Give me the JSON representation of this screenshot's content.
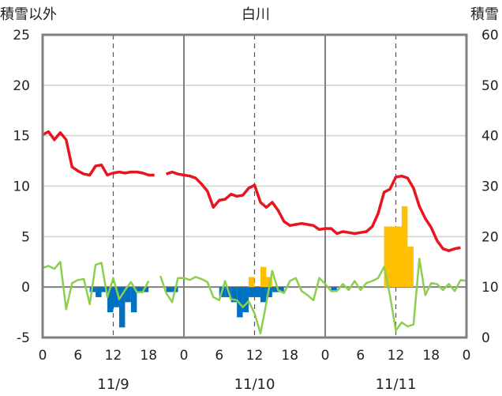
{
  "chart_data": {
    "type": "bar+line",
    "title": "白川",
    "left_axis_label": "積雪以外",
    "right_axis_label": "積雪",
    "y_left": {
      "min": -5,
      "max": 25,
      "ticks": [
        -5,
        0,
        5,
        10,
        15,
        20,
        25
      ]
    },
    "y_right": {
      "min": 0,
      "max": 60,
      "ticks": [
        0,
        10,
        20,
        30,
        40,
        50,
        60
      ]
    },
    "x": {
      "min_hour": 0,
      "max_hour": 72,
      "tick_hours": [
        0,
        6,
        12,
        18,
        24,
        30,
        36,
        42,
        48,
        54,
        60,
        66,
        72
      ],
      "tick_labels": [
        "0",
        "6",
        "12",
        "18",
        "0",
        "6",
        "12",
        "18",
        "0",
        "6",
        "12",
        "18",
        "0"
      ],
      "day_lines": [
        24,
        48
      ],
      "noon_lines": [
        12,
        36,
        60
      ],
      "dates": [
        {
          "label": "11/9",
          "hour": 12
        },
        {
          "label": "11/10",
          "hour": 36
        },
        {
          "label": "11/11",
          "hour": 60
        }
      ]
    },
    "series": [
      {
        "type": "line",
        "color": "#e8141e",
        "axis": "left",
        "points": [
          [
            0,
            15.1
          ],
          [
            1,
            15.4
          ],
          [
            2,
            14.6
          ],
          [
            3,
            15.3
          ],
          [
            4,
            14.6
          ],
          [
            5,
            11.9
          ],
          [
            6,
            11.5
          ],
          [
            7,
            11.2
          ],
          [
            8,
            11.1
          ],
          [
            9,
            12.0
          ],
          [
            10,
            12.1
          ],
          [
            11,
            11.1
          ],
          [
            12,
            11.3
          ],
          [
            13,
            11.4
          ],
          [
            14,
            11.3
          ],
          [
            15,
            11.4
          ],
          [
            16,
            11.4
          ],
          [
            17,
            11.3
          ],
          [
            18,
            11.1
          ],
          [
            19,
            11.1
          ],
          [
            null,
            null
          ],
          [
            21,
            11.2
          ],
          [
            22,
            11.4
          ],
          [
            23,
            11.2
          ],
          [
            24,
            11.1
          ],
          [
            25,
            11.0
          ],
          [
            26,
            10.8
          ],
          [
            27,
            10.2
          ],
          [
            28,
            9.5
          ],
          [
            29,
            7.9
          ],
          [
            30,
            8.6
          ],
          [
            31,
            8.7
          ],
          [
            32,
            9.2
          ],
          [
            33,
            9.0
          ],
          [
            34,
            9.1
          ],
          [
            35,
            9.8
          ],
          [
            36,
            10.1
          ],
          [
            37,
            8.4
          ],
          [
            38,
            7.9
          ],
          [
            39,
            8.4
          ],
          [
            40,
            7.6
          ],
          [
            41,
            6.5
          ],
          [
            42,
            6.1
          ],
          [
            43,
            6.2
          ],
          [
            44,
            6.3
          ],
          [
            45,
            6.2
          ],
          [
            46,
            6.1
          ],
          [
            47,
            5.7
          ],
          [
            48,
            5.8
          ],
          [
            49,
            5.8
          ],
          [
            50,
            5.3
          ],
          [
            51,
            5.5
          ],
          [
            52,
            5.4
          ],
          [
            53,
            5.3
          ],
          [
            54,
            5.4
          ],
          [
            55,
            5.5
          ],
          [
            56,
            6.0
          ],
          [
            57,
            7.3
          ],
          [
            58,
            9.4
          ],
          [
            59,
            9.7
          ],
          [
            60,
            10.9
          ],
          [
            61,
            11.0
          ],
          [
            62,
            10.8
          ],
          [
            63,
            9.8
          ],
          [
            64,
            8.0
          ],
          [
            65,
            6.8
          ],
          [
            66,
            5.9
          ],
          [
            67,
            4.6
          ],
          [
            68,
            3.8
          ],
          [
            69,
            3.6
          ],
          [
            70,
            3.8
          ],
          [
            71,
            3.9
          ]
        ]
      },
      {
        "type": "line",
        "color": "#8ccf50",
        "axis": "left",
        "points": [
          [
            0,
            1.9
          ],
          [
            1,
            2.1
          ],
          [
            2,
            1.8
          ],
          [
            3,
            2.5
          ],
          [
            4,
            -2.2
          ],
          [
            5,
            0.4
          ],
          [
            6,
            0.7
          ],
          [
            7,
            0.8
          ],
          [
            8,
            -1.7
          ],
          [
            9,
            2.2
          ],
          [
            10,
            2.4
          ],
          [
            11,
            -1.0
          ],
          [
            12,
            0.9
          ],
          [
            13,
            -1.2
          ],
          [
            14,
            -0.3
          ],
          [
            15,
            0.5
          ],
          [
            16,
            -0.5
          ],
          [
            17,
            -0.5
          ],
          [
            18,
            0.6
          ],
          [
            null,
            null
          ],
          [
            20,
            1.1
          ],
          [
            21,
            -0.6
          ],
          [
            22,
            -1.5
          ],
          [
            23,
            0.9
          ],
          [
            24,
            0.9
          ],
          [
            25,
            0.7
          ],
          [
            26,
            1.0
          ],
          [
            27,
            0.8
          ],
          [
            28,
            0.5
          ],
          [
            29,
            -1.0
          ],
          [
            30,
            -1.3
          ],
          [
            31,
            0.6
          ],
          [
            32,
            -1.2
          ],
          [
            33,
            -1.3
          ],
          [
            34,
            -2.0
          ],
          [
            35,
            -1.4
          ],
          [
            36,
            -2.6
          ],
          [
            37,
            -4.6
          ],
          [
            38,
            -1.6
          ],
          [
            39,
            1.6
          ],
          [
            40,
            -0.3
          ],
          [
            41,
            -0.6
          ],
          [
            42,
            0.6
          ],
          [
            43,
            0.9
          ],
          [
            44,
            -0.4
          ],
          [
            45,
            -0.8
          ],
          [
            46,
            -1.3
          ],
          [
            47,
            0.9
          ],
          [
            48,
            0.3
          ],
          [
            49,
            -0.4
          ],
          [
            50,
            -0.4
          ],
          [
            51,
            0.3
          ],
          [
            52,
            -0.3
          ],
          [
            53,
            0.6
          ],
          [
            54,
            -0.3
          ],
          [
            55,
            0.4
          ],
          [
            56,
            0.6
          ],
          [
            57,
            0.9
          ],
          [
            58,
            2.0
          ],
          [
            59,
            -0.8
          ],
          [
            60,
            -4.3
          ],
          [
            61,
            -3.5
          ],
          [
            62,
            -3.9
          ],
          [
            63,
            -3.7
          ],
          [
            64,
            2.8
          ],
          [
            65,
            -0.8
          ],
          [
            66,
            0.4
          ],
          [
            67,
            0.3
          ],
          [
            68,
            -0.3
          ],
          [
            69,
            0.3
          ],
          [
            70,
            -0.4
          ],
          [
            71,
            0.7
          ],
          [
            72,
            0.6
          ]
        ]
      },
      {
        "type": "line",
        "color": "#7030a0",
        "axis": "left",
        "points": [
          [
            0,
            -5
          ],
          [
            72,
            -5
          ]
        ]
      },
      {
        "type": "bar",
        "color": "#0070c0",
        "axis": "left",
        "points": [
          [
            8,
            -0.5
          ],
          [
            9,
            -1.0
          ],
          [
            10,
            -0.5
          ],
          [
            11,
            -2.5
          ],
          [
            12,
            -2.0
          ],
          [
            13,
            -4.0
          ],
          [
            14,
            -1.5
          ],
          [
            15,
            -2.5
          ],
          [
            16,
            -0.5
          ],
          [
            17,
            -0.5
          ],
          [
            21,
            -0.5
          ],
          [
            22,
            -0.5
          ],
          [
            30,
            -1.0
          ],
          [
            31,
            -1.0
          ],
          [
            32,
            -1.5
          ],
          [
            33,
            -3.0
          ],
          [
            34,
            -2.5
          ],
          [
            35,
            -1.0
          ],
          [
            36,
            -1.0
          ],
          [
            37,
            -1.5
          ],
          [
            38,
            -1.0
          ],
          [
            39,
            -0.5
          ],
          [
            40,
            -0.5
          ],
          [
            49,
            -0.5
          ]
        ]
      },
      {
        "type": "bar",
        "color": "#ffc000",
        "axis": "left",
        "points": [
          [
            35,
            1.0
          ],
          [
            37,
            2.0
          ],
          [
            38,
            1.0
          ],
          [
            58,
            6.0
          ],
          [
            59,
            6.0
          ],
          [
            60,
            6.0
          ],
          [
            61,
            8.0
          ],
          [
            62,
            4.0
          ]
        ]
      }
    ]
  }
}
